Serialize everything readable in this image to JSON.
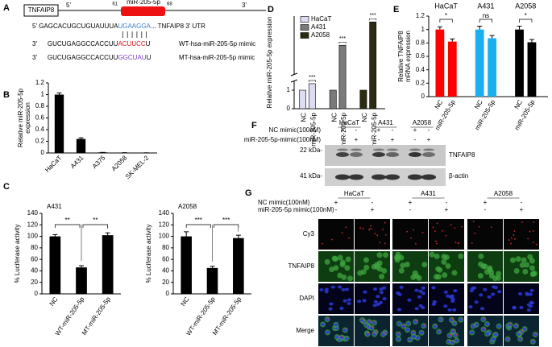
{
  "panel_a": {
    "label": "A",
    "gene": "TNFAIP8",
    "ends": [
      "5'",
      "3'"
    ],
    "mirna": "miR-205-5p",
    "positions": [
      "61",
      "68"
    ],
    "utr": [
      "5' GAGCACUGCUGUAUUUA",
      "UGAAGGA",
      "... TNFAIP8  3' UTR"
    ],
    "wt": {
      "end": "3'",
      "seq": [
        "GUCUGAGGCCACCUU",
        "ACUUCC",
        "U"
      ],
      "name": "WT-hsa-miR-205-5p mimic"
    },
    "mt": {
      "end": "3'",
      "seq": [
        "GUCUGAGGCCACCUU",
        "GGCUAU",
        "U"
      ],
      "name": "MT-hsa-miR-205-5p mimic"
    }
  },
  "chart_data": [
    {
      "type": "bar",
      "panel": "B",
      "ylabel": [
        "Relative miR-205-5p",
        "expression"
      ],
      "categories": [
        "HaCaT",
        "A431",
        "A375",
        "A2058",
        "SK-MEL-2"
      ],
      "values": [
        1,
        0.24,
        0.01,
        0.005,
        0.003
      ],
      "errors": [
        0.03,
        0.02,
        0,
        0,
        0
      ],
      "color": "#000000",
      "ylim": [
        0,
        1.2
      ],
      "yticks": [
        0,
        0.2,
        0.4,
        0.6,
        0.8,
        1,
        1.2
      ]
    },
    {
      "type": "bar",
      "panel": "C",
      "title": "A431",
      "ylabel": [
        "% Luciferase activity"
      ],
      "categories": [
        "NC",
        "WT-miR-205-5p",
        "MT-miR-205-5p"
      ],
      "values": [
        100,
        46,
        102
      ],
      "errors": [
        3,
        3,
        4
      ],
      "color": "#000000",
      "ylim": [
        0,
        140
      ],
      "yticks": [
        0,
        20,
        40,
        60,
        80,
        100,
        120,
        140
      ],
      "comparisons": [
        {
          "label": "**",
          "between": [
            "NC",
            "WT-miR-205-5p"
          ]
        },
        {
          "label": "**",
          "between": [
            "WT-miR-205-5p",
            "MT-miR-205-5p"
          ]
        }
      ]
    },
    {
      "type": "bar",
      "title": "A2058",
      "ylabel": [
        "% Luciferase activity"
      ],
      "categories": [
        "NC",
        "WT-miR-205-5p",
        "MT-miR-205-5p"
      ],
      "values": [
        100,
        45,
        97
      ],
      "errors": [
        8,
        3,
        5
      ],
      "color": "#000000",
      "ylim": [
        0,
        140
      ],
      "yticks": [
        0,
        20,
        40,
        60,
        80,
        100,
        120,
        140
      ],
      "comparisons": [
        {
          "label": "***",
          "between": [
            "NC",
            "WT-miR-205-5p"
          ]
        },
        {
          "label": "***",
          "between": [
            "WT-miR-205-5p",
            "MT-miR-205-5p"
          ]
        }
      ]
    },
    {
      "type": "bar",
      "panel": "D",
      "ylabel": [
        "Relative miR-205-5p expression"
      ],
      "categories": [
        "NC",
        "miR-205-5p"
      ],
      "series": [
        {
          "name": "HaCaT",
          "color": "#dcdcf5",
          "values": [
            1,
            1.35
          ],
          "significance": "***"
        },
        {
          "name": "A431",
          "color": "#7a7a7a",
          "values": [
            1,
            200
          ],
          "significance": "***"
        },
        {
          "name": "A2058",
          "color": "#2b2b12",
          "values": [
            1,
            280
          ],
          "significance": "***"
        }
      ],
      "ylim": [
        0,
        300
      ],
      "axis_break": [
        1.5,
        100
      ],
      "yticks": [
        0,
        1
      ],
      "legend": "upper left"
    },
    {
      "type": "bar",
      "panel": "E",
      "ylabel": [
        "Relative TNFAIP8",
        "mRNA expression"
      ],
      "categories": [
        "NC",
        "miR-205-5p"
      ],
      "series": [
        {
          "name": "HaCaT",
          "color": "#ff0000",
          "values": [
            1,
            0.82
          ],
          "errors": [
            0.04,
            0.04
          ],
          "significance": "*"
        },
        {
          "name": "A431",
          "color": "#1ab0f0",
          "values": [
            1,
            0.87
          ],
          "errors": [
            0.05,
            0.04
          ],
          "significance": "ns"
        },
        {
          "name": "A2058",
          "color": "#000000",
          "values": [
            1,
            0.81
          ],
          "errors": [
            0.05,
            0.04
          ],
          "significance": "*"
        }
      ],
      "ylim": [
        0,
        1.2
      ],
      "yticks": [
        0,
        0.2,
        0.4,
        0.6,
        0.8,
        1,
        1.2
      ],
      "legend": "top"
    }
  ],
  "panel_f": {
    "label": "F",
    "rows": [
      "NC mimic(100nM)",
      "miR-205-5p-mimic(100nM)"
    ],
    "cells": [
      "HaCaT",
      "A431",
      "A2058"
    ],
    "signs": [
      [
        "+",
        "-",
        "+",
        "-",
        "+",
        "-"
      ],
      [
        "-",
        "+",
        "-",
        "+",
        "-",
        "+"
      ]
    ],
    "markers": [
      "22 kDa-",
      "41 kDa-"
    ],
    "proteins": [
      "TNFAIP8",
      "β-actin"
    ]
  },
  "panel_g": {
    "label": "G",
    "rows": [
      "NC mimic(100nM)",
      "miR-205-5p mimic(100nM)"
    ],
    "cells": [
      "HaCaT",
      "A431",
      "A2058"
    ],
    "signs": [
      [
        "+",
        "-",
        "+",
        "-",
        "+",
        "-"
      ],
      [
        "-",
        "+",
        "-",
        "+",
        "-",
        "+"
      ]
    ],
    "channels": [
      "Cy3",
      "TNFAIP8",
      "DAPI",
      "Merge"
    ]
  }
}
